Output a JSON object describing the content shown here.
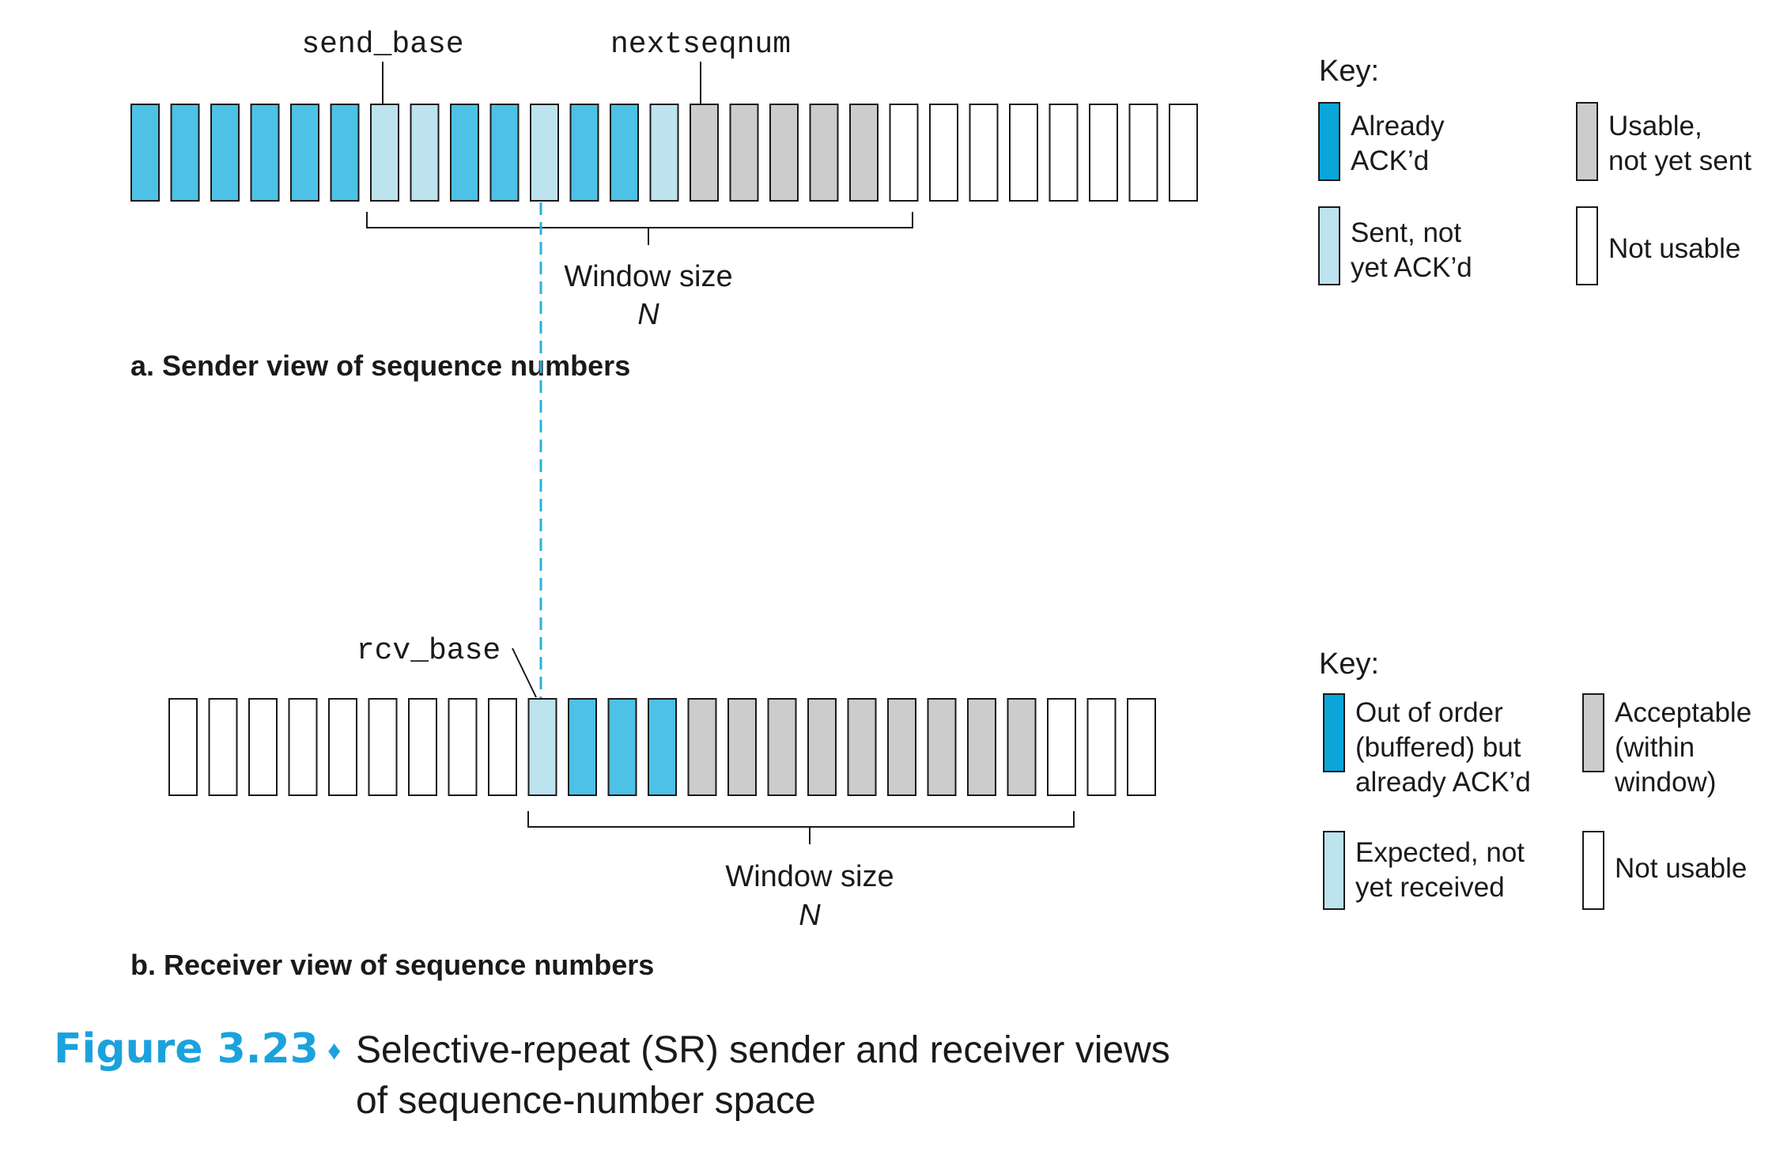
{
  "colors": {
    "acked": "#4dc1e6",
    "acked_key": "#0aa6d9",
    "sent": "#bde3ee",
    "usable": "#cccccc",
    "empty": "#ffffff",
    "stroke": "#1a1a1a",
    "dashed": "#2ab0df",
    "figure_label": "#1ba2dd"
  },
  "sender": {
    "pointer_left": "send_base",
    "pointer_right": "nextseqnum",
    "cells": [
      "acked",
      "acked",
      "acked",
      "acked",
      "acked",
      "acked",
      "sent",
      "sent",
      "acked",
      "acked",
      "sent",
      "acked",
      "acked",
      "sent",
      "usable",
      "usable",
      "usable",
      "usable",
      "usable",
      "empty",
      "empty",
      "empty",
      "empty",
      "empty",
      "empty",
      "empty",
      "empty"
    ],
    "window_label": "Window size",
    "window_symbol": "N",
    "caption": "a. Sender view of sequence numbers",
    "key_title": "Key:",
    "key": [
      {
        "state": "acked",
        "lines": [
          "Already",
          "ACK’d"
        ]
      },
      {
        "state": "sent",
        "lines": [
          "Sent, not",
          "yet ACK’d"
        ]
      },
      {
        "state": "usable",
        "lines": [
          "Usable,",
          "not yet sent"
        ]
      },
      {
        "state": "empty",
        "lines": [
          "Not usable"
        ]
      }
    ]
  },
  "receiver": {
    "pointer": "rcv_base",
    "cells": [
      "empty",
      "empty",
      "empty",
      "empty",
      "empty",
      "empty",
      "empty",
      "empty",
      "empty",
      "sent",
      "acked",
      "acked",
      "acked",
      "usable",
      "usable",
      "usable",
      "usable",
      "usable",
      "usable",
      "usable",
      "usable",
      "usable",
      "empty",
      "empty",
      "empty"
    ],
    "window_label": "Window size",
    "window_symbol": "N",
    "caption": "b. Receiver view of sequence numbers",
    "key_title": "Key:",
    "key": [
      {
        "state": "acked",
        "lines": [
          "Out of order",
          "(buffered) but",
          "already ACK’d"
        ]
      },
      {
        "state": "sent",
        "lines": [
          "Expected, not",
          "yet received"
        ]
      },
      {
        "state": "usable",
        "lines": [
          "Acceptable",
          "(within",
          "window)"
        ]
      },
      {
        "state": "empty",
        "lines": [
          "Not usable"
        ]
      }
    ]
  },
  "figure": {
    "label": "Figure 3.23",
    "bullet": "♦",
    "title_lines": [
      "Selective-repeat (SR) sender and receiver views",
      "of sequence-number space"
    ]
  }
}
